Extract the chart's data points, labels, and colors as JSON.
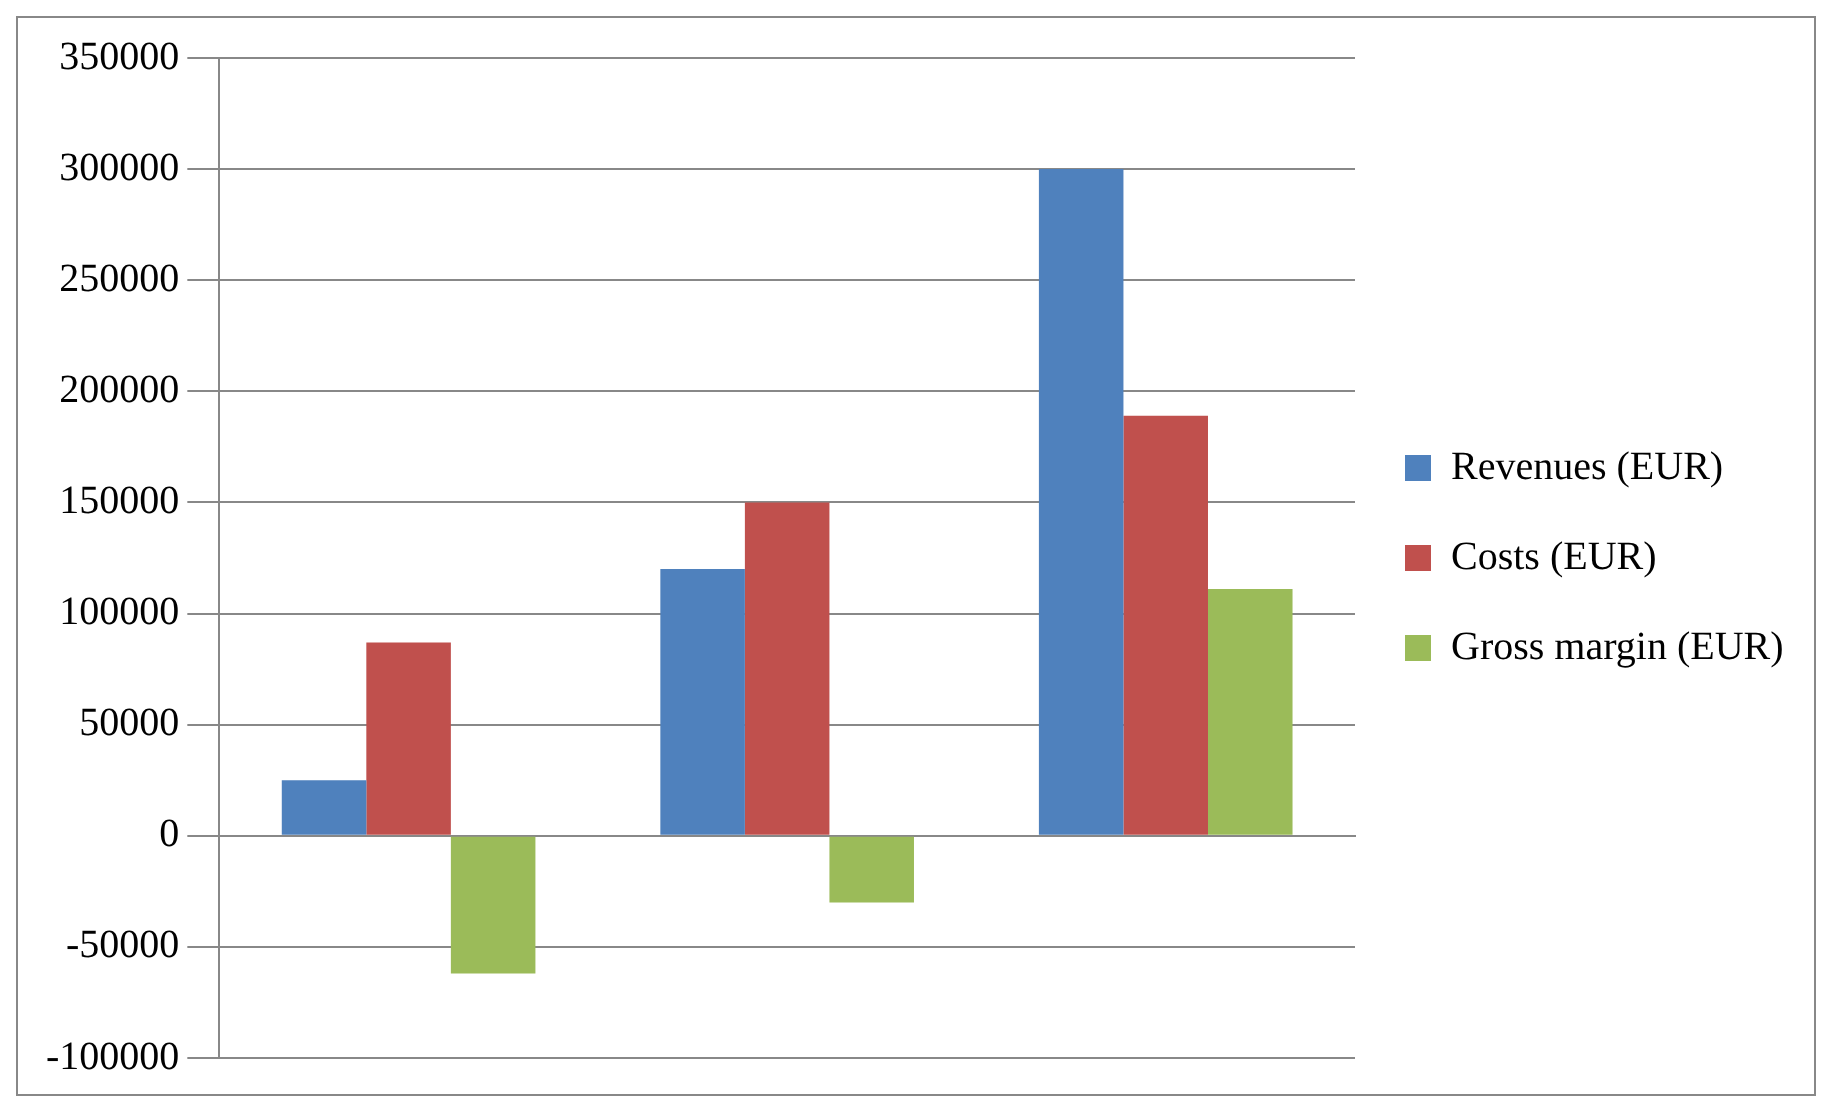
{
  "chart_data": {
    "type": "bar",
    "categories": [
      null,
      null,
      null
    ],
    "series": [
      {
        "name": "Revenues (EUR)",
        "color": "#4f81bd",
        "values": [
          25000,
          120000,
          300000
        ]
      },
      {
        "name": "Costs (EUR)",
        "color": "#c0504d",
        "values": [
          87000,
          150000,
          189000
        ]
      },
      {
        "name": "Gross margin (EUR)",
        "color": "#9bbb59",
        "values": [
          -62000,
          -30000,
          111000
        ]
      }
    ],
    "ylim": [
      -100000,
      350000
    ],
    "yticks": [
      -100000,
      -50000,
      0,
      50000,
      100000,
      150000,
      200000,
      250000,
      300000,
      350000
    ],
    "grid": "y",
    "legend": "right"
  }
}
